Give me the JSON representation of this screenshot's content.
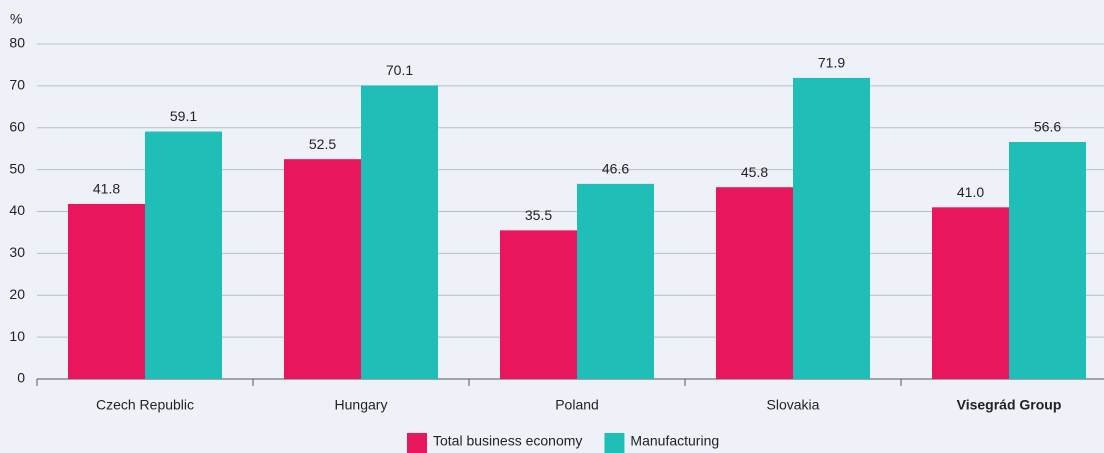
{
  "chart_data": {
    "type": "bar",
    "y_label": "%",
    "categories": [
      "Czech Republic",
      "Hungary",
      "Poland",
      "Slovakia",
      "Visegrád Group"
    ],
    "series": [
      {
        "name": "Total business economy",
        "color": "#e8175d",
        "values": [
          41.8,
          52.5,
          35.5,
          45.8,
          41.0
        ],
        "value_labels": [
          "41.8",
          "52.5",
          "35.5",
          "45.8",
          "41.0"
        ]
      },
      {
        "name": "Manufacturing",
        "color": "#1fbfb8",
        "values": [
          59.1,
          70.1,
          46.6,
          71.9,
          56.6
        ],
        "value_labels": [
          "59.1",
          "70.1",
          "46.6",
          "71.9",
          "56.6"
        ]
      }
    ],
    "ylim": [
      0,
      80
    ],
    "yticks": [
      0,
      10,
      20,
      30,
      40,
      50,
      60,
      70,
      80
    ],
    "grid": true,
    "legend": "bottom"
  }
}
